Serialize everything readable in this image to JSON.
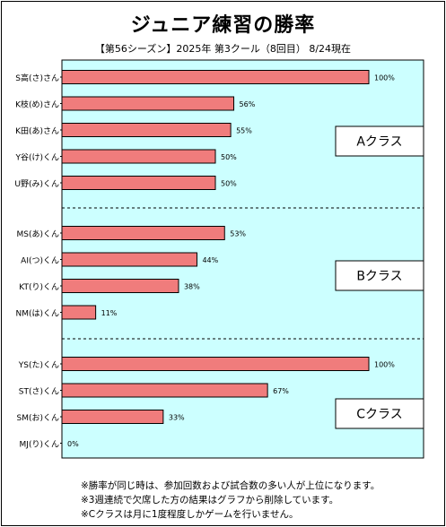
{
  "title": "ジュニア練習の勝率",
  "subtitle": "【第56シーズン】2025年  第3クール（8回目） 8/24現在",
  "chart_data": {
    "type": "bar",
    "orientation": "horizontal",
    "xlim": [
      0,
      100
    ],
    "value_unit": "%",
    "grid": false,
    "bar_color": "#f07c7c",
    "plot_background": "#ccffff",
    "groups": [
      {
        "label": "Aクラス",
        "categories": [
          "S高(さ)さん",
          "K枝(め)さん",
          "K田(あ)さん",
          "Y谷(け)くん",
          "U野(み)くん"
        ],
        "values": [
          100,
          56,
          55,
          50,
          50
        ],
        "value_labels": [
          "100%",
          "56%",
          "55%",
          "50%",
          "50%"
        ]
      },
      {
        "label": "Bクラス",
        "categories": [
          "MS(あ)くん",
          "AI(つ)くん",
          "KT(り)くん",
          "NM(は)くん"
        ],
        "values": [
          53,
          44,
          38,
          11
        ],
        "value_labels": [
          "53%",
          "44%",
          "38%",
          "11%"
        ]
      },
      {
        "label": "Cクラス",
        "categories": [
          "YS(た)くん",
          "ST(さ)くん",
          "SM(お)くん",
          "MJ(り)くん"
        ],
        "values": [
          100,
          67,
          33,
          0
        ],
        "value_labels": [
          "100%",
          "67%",
          "33%",
          "0%"
        ]
      }
    ]
  },
  "notes": [
    "※勝率が同じ時は、参加回数および試合数の多い人が上位になります。",
    "※3週連続で欠席した方の結果はグラフから削除しています。",
    "※Cクラスは月に1度程度しかゲームを行いません。"
  ]
}
